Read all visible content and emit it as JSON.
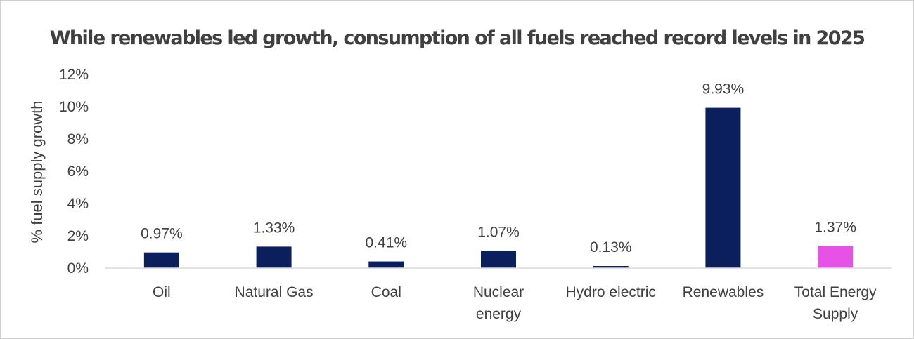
{
  "chart_data": {
    "type": "bar",
    "title": "While renewables led growth, consumption of all fuels reached record levels in 2025",
    "ylabel": "% fuel supply growth",
    "xlabel": "",
    "categories": [
      [
        "Oil"
      ],
      [
        "Natural Gas"
      ],
      [
        "Coal"
      ],
      [
        "Nuclear",
        "energy"
      ],
      [
        "Hydro electric"
      ],
      [
        "Renewables"
      ],
      [
        "Total Energy",
        "Supply"
      ]
    ],
    "values": [
      0.97,
      1.33,
      0.41,
      1.07,
      0.13,
      9.93,
      1.37
    ],
    "data_labels": [
      "0.97%",
      "1.33%",
      "0.41%",
      "1.07%",
      "0.13%",
      "9.93%",
      "1.37%"
    ],
    "bar_colors": [
      "#0b1f5c",
      "#0b1f5c",
      "#0b1f5c",
      "#0b1f5c",
      "#0b1f5c",
      "#0b1f5c",
      "#e652e6"
    ],
    "ylim": [
      0,
      12
    ],
    "yticks": [
      0,
      2,
      4,
      6,
      8,
      10,
      12
    ],
    "ytick_labels": [
      "0%",
      "2%",
      "4%",
      "6%",
      "8%",
      "10%",
      "12%"
    ],
    "grid": false,
    "legend": "none"
  }
}
